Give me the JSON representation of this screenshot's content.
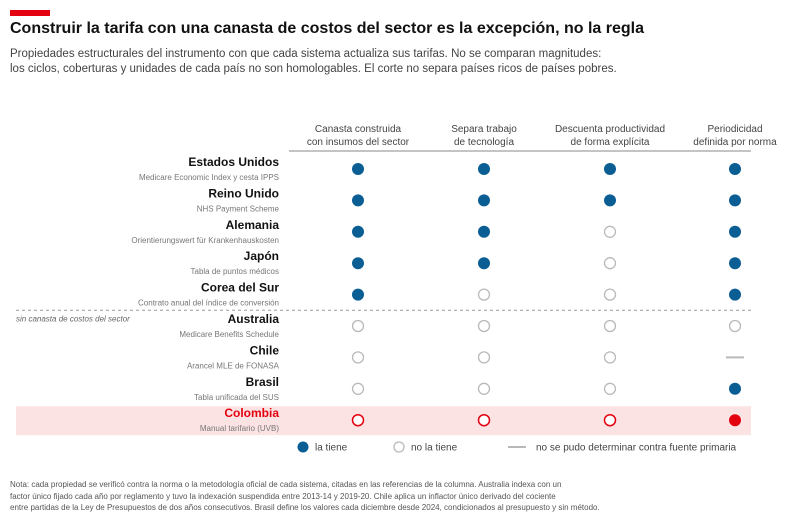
{
  "header": {
    "title": "Construir la tarifa con una canasta de costos del sector es la excepción, no la regla",
    "subtitle_line1": "Propiedades estructurales del instrumento con que cada sistema actualiza sus tarifas. No se comparan magnitudes:",
    "subtitle_line2": "los ciclos, coberturas y unidades de cada país no son homologables. El corte no separa países ricos de países pobres."
  },
  "colors": {
    "accent": "#e3000f",
    "filled": "#0b5e93",
    "empty_stroke": "#b9b9b9",
    "highlight_bg": "#fbe3e3",
    "highlight": "#e3000f"
  },
  "chart_data": {
    "type": "table",
    "columns": [
      {
        "line1": "Canasta construida",
        "line2": "con insumos del sector"
      },
      {
        "line1": "Separa trabajo",
        "line2": "de tecnología"
      },
      {
        "line1": "Descuenta productividad",
        "line2": "de forma explícita"
      },
      {
        "line1": "Periodicidad",
        "line2": "definida por norma"
      }
    ],
    "rows": [
      {
        "country": "Estados Unidos",
        "instrument": "Medicare Economic Index y cesta IPPS",
        "values": [
          "yes",
          "yes",
          "yes",
          "yes"
        ]
      },
      {
        "country": "Reino Unido",
        "instrument": "NHS Payment Scheme",
        "values": [
          "yes",
          "yes",
          "yes",
          "yes"
        ]
      },
      {
        "country": "Alemania",
        "instrument": "Orientierungswert für Krankenhauskosten",
        "values": [
          "yes",
          "yes",
          "no",
          "yes"
        ]
      },
      {
        "country": "Japón",
        "instrument": "Tabla de puntos médicos",
        "values": [
          "yes",
          "yes",
          "no",
          "yes"
        ]
      },
      {
        "country": "Corea del Sur",
        "instrument": "Contrato anual del índice de conversión",
        "values": [
          "yes",
          "no",
          "no",
          "yes"
        ]
      },
      {
        "country": "Australia",
        "instrument": "Medicare Benefits Schedule",
        "values": [
          "no",
          "no",
          "no",
          "no"
        ]
      },
      {
        "country": "Chile",
        "instrument": "Arancel MLE de FONASA",
        "values": [
          "no",
          "no",
          "no",
          "na"
        ]
      },
      {
        "country": "Brasil",
        "instrument": "Tabla unificada del SUS",
        "values": [
          "no",
          "no",
          "no",
          "yes"
        ]
      },
      {
        "country": "Colombia",
        "instrument": "Manual tarifario (UVB)",
        "values": [
          "no",
          "no",
          "no",
          "yes"
        ],
        "highlight": true
      }
    ],
    "separator_label": "sin canasta de costos del sector",
    "legend": [
      {
        "key": "yes",
        "label": "la tiene"
      },
      {
        "key": "no",
        "label": "no la tiene"
      },
      {
        "key": "na",
        "label": "no se pudo determinar contra fuente primaria"
      }
    ]
  },
  "note": {
    "line1": "Nota: cada propiedad se verificó contra la norma o la metodología oficial de cada sistema, citadas en las referencias de la columna. Australia indexa con un",
    "line2": "factor único fijado cada año por reglamento y tuvo la indexación suspendida entre 2013-14 y 2019-20. Chile aplica un inflactor único derivado del cociente",
    "line3": "entre partidas de la Ley de Presupuestos de dos años consecutivos. Brasil define los valores cada diciembre desde 2024, condicionados al presupuesto y sin método."
  }
}
